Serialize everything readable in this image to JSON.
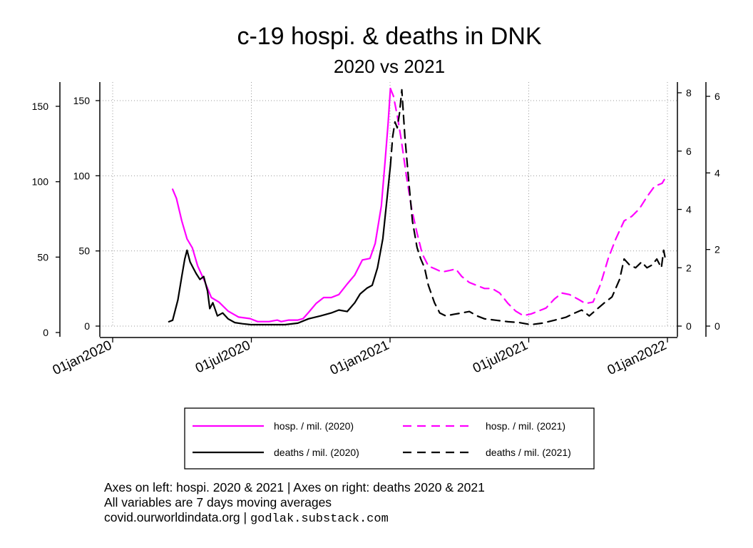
{
  "chart_data": {
    "type": "line",
    "title": "c-19 hospi. & deaths in DNK",
    "subtitle": "2020 vs 2021",
    "x_ticks": [
      "01jan2020",
      "01jul2020",
      "01jan2021",
      "01jul2021",
      "01jan2022"
    ],
    "x_range": [
      "2020-01-01",
      "2022-01-01"
    ],
    "y_left": {
      "ticks": [
        0,
        50,
        100,
        150
      ],
      "range": [
        0,
        160
      ]
    },
    "y_left2": {
      "ticks": [
        0,
        50,
        100,
        150
      ],
      "range": [
        0,
        160
      ]
    },
    "y_right": {
      "ticks": [
        0,
        2,
        4,
        6,
        8
      ],
      "range": [
        0,
        8.2
      ]
    },
    "y_right2": {
      "ticks": [
        0,
        2,
        4,
        6
      ],
      "range": [
        0,
        6.3
      ]
    },
    "grid": true,
    "legend_position": "bottom",
    "series": [
      {
        "name": "hosp. / mil. (2020)",
        "axis": "left",
        "color": "#ff00ff",
        "dash": "solid",
        "points": [
          [
            "2020-03-20",
            91
          ],
          [
            "2020-03-25",
            85
          ],
          [
            "2020-04-01",
            70
          ],
          [
            "2020-04-08",
            58
          ],
          [
            "2020-04-15",
            52
          ],
          [
            "2020-04-22",
            40
          ],
          [
            "2020-05-01",
            30
          ],
          [
            "2020-05-10",
            19
          ],
          [
            "2020-05-20",
            16
          ],
          [
            "2020-06-01",
            10
          ],
          [
            "2020-06-15",
            6
          ],
          [
            "2020-06-30",
            5
          ],
          [
            "2020-07-10",
            3
          ],
          [
            "2020-07-25",
            3
          ],
          [
            "2020-08-05",
            4
          ],
          [
            "2020-08-10",
            3
          ],
          [
            "2020-08-20",
            4
          ],
          [
            "2020-09-01",
            4
          ],
          [
            "2020-09-08",
            5
          ],
          [
            "2020-09-15",
            9
          ],
          [
            "2020-09-25",
            15
          ],
          [
            "2020-10-05",
            19
          ],
          [
            "2020-10-15",
            19
          ],
          [
            "2020-10-25",
            21
          ],
          [
            "2020-11-05",
            28
          ],
          [
            "2020-11-15",
            34
          ],
          [
            "2020-11-25",
            44
          ],
          [
            "2020-12-05",
            45
          ],
          [
            "2020-12-12",
            55
          ],
          [
            "2020-12-20",
            80
          ],
          [
            "2020-12-25",
            110
          ],
          [
            "2020-12-29",
            135
          ],
          [
            "2021-01-01",
            158
          ]
        ]
      },
      {
        "name": "hosp. / mil. (2021)",
        "axis": "left",
        "color": "#ff00ff",
        "dash": "dashed",
        "points": [
          [
            "2021-01-01",
            158
          ],
          [
            "2021-01-05",
            153
          ],
          [
            "2021-01-10",
            140
          ],
          [
            "2021-01-15",
            125
          ],
          [
            "2021-01-22",
            100
          ],
          [
            "2021-01-29",
            78
          ],
          [
            "2021-02-05",
            62
          ],
          [
            "2021-02-12",
            48
          ],
          [
            "2021-02-20",
            40
          ],
          [
            "2021-03-01",
            38
          ],
          [
            "2021-03-10",
            36
          ],
          [
            "2021-03-20",
            37
          ],
          [
            "2021-03-28",
            38
          ],
          [
            "2021-04-05",
            33
          ],
          [
            "2021-04-15",
            29
          ],
          [
            "2021-04-25",
            27
          ],
          [
            "2021-05-05",
            25
          ],
          [
            "2021-05-15",
            25
          ],
          [
            "2021-05-25",
            22
          ],
          [
            "2021-06-05",
            15
          ],
          [
            "2021-06-15",
            10
          ],
          [
            "2021-06-25",
            7
          ],
          [
            "2021-07-05",
            8
          ],
          [
            "2021-07-15",
            10
          ],
          [
            "2021-07-25",
            12
          ],
          [
            "2021-08-05",
            18
          ],
          [
            "2021-08-15",
            22
          ],
          [
            "2021-08-25",
            21
          ],
          [
            "2021-09-05",
            18
          ],
          [
            "2021-09-15",
            15
          ],
          [
            "2021-09-25",
            16
          ],
          [
            "2021-10-05",
            28
          ],
          [
            "2021-10-15",
            45
          ],
          [
            "2021-10-25",
            58
          ],
          [
            "2021-11-05",
            70
          ],
          [
            "2021-11-15",
            73
          ],
          [
            "2021-11-25",
            78
          ],
          [
            "2021-12-05",
            86
          ],
          [
            "2021-12-15",
            93
          ],
          [
            "2021-12-25",
            95
          ],
          [
            "2021-12-31",
            100
          ]
        ]
      },
      {
        "name": "deaths / mil. (2020)",
        "axis": "right",
        "color": "#000000",
        "dash": "solid",
        "points": [
          [
            "2020-03-15",
            0.15
          ],
          [
            "2020-03-20",
            0.2
          ],
          [
            "2020-03-27",
            0.9
          ],
          [
            "2020-04-01",
            1.7
          ],
          [
            "2020-04-05",
            2.3
          ],
          [
            "2020-04-08",
            2.6
          ],
          [
            "2020-04-12",
            2.2
          ],
          [
            "2020-04-16",
            2.0
          ],
          [
            "2020-04-20",
            1.8
          ],
          [
            "2020-04-25",
            1.6
          ],
          [
            "2020-04-30",
            1.7
          ],
          [
            "2020-05-05",
            1.2
          ],
          [
            "2020-05-08",
            0.6
          ],
          [
            "2020-05-12",
            0.8
          ],
          [
            "2020-05-18",
            0.35
          ],
          [
            "2020-05-25",
            0.45
          ],
          [
            "2020-06-01",
            0.25
          ],
          [
            "2020-06-10",
            0.12
          ],
          [
            "2020-06-20",
            0.08
          ],
          [
            "2020-07-01",
            0.05
          ],
          [
            "2020-07-15",
            0.05
          ],
          [
            "2020-08-01",
            0.05
          ],
          [
            "2020-08-15",
            0.05
          ],
          [
            "2020-09-01",
            0.1
          ],
          [
            "2020-09-15",
            0.25
          ],
          [
            "2020-10-01",
            0.35
          ],
          [
            "2020-10-15",
            0.45
          ],
          [
            "2020-10-25",
            0.55
          ],
          [
            "2020-11-05",
            0.5
          ],
          [
            "2020-11-15",
            0.8
          ],
          [
            "2020-11-22",
            1.1
          ],
          [
            "2020-12-01",
            1.3
          ],
          [
            "2020-12-08",
            1.4
          ],
          [
            "2020-12-15",
            2.0
          ],
          [
            "2020-12-22",
            3.0
          ],
          [
            "2020-12-28",
            4.5
          ],
          [
            "2021-01-01",
            5.5
          ]
        ]
      },
      {
        "name": "deaths / mil. (2021)",
        "axis": "right",
        "color": "#000000",
        "dash": "dashed",
        "points": [
          [
            "2021-01-01",
            5.5
          ],
          [
            "2021-01-04",
            6.5
          ],
          [
            "2021-01-07",
            7.0
          ],
          [
            "2021-01-10",
            6.8
          ],
          [
            "2021-01-13",
            7.3
          ],
          [
            "2021-01-16",
            8.1
          ],
          [
            "2021-01-20",
            6.5
          ],
          [
            "2021-01-25",
            5.0
          ],
          [
            "2021-01-30",
            3.6
          ],
          [
            "2021-02-05",
            2.7
          ],
          [
            "2021-02-10",
            2.3
          ],
          [
            "2021-02-15",
            2.0
          ],
          [
            "2021-02-20",
            1.4
          ],
          [
            "2021-02-28",
            0.8
          ],
          [
            "2021-03-07",
            0.45
          ],
          [
            "2021-03-15",
            0.35
          ],
          [
            "2021-03-25",
            0.4
          ],
          [
            "2021-04-05",
            0.45
          ],
          [
            "2021-04-15",
            0.5
          ],
          [
            "2021-04-25",
            0.35
          ],
          [
            "2021-05-05",
            0.25
          ],
          [
            "2021-05-20",
            0.2
          ],
          [
            "2021-06-05",
            0.15
          ],
          [
            "2021-06-20",
            0.12
          ],
          [
            "2021-07-05",
            0.05
          ],
          [
            "2021-07-20",
            0.1
          ],
          [
            "2021-08-05",
            0.2
          ],
          [
            "2021-08-20",
            0.3
          ],
          [
            "2021-09-01",
            0.45
          ],
          [
            "2021-09-10",
            0.55
          ],
          [
            "2021-09-20",
            0.35
          ],
          [
            "2021-10-01",
            0.6
          ],
          [
            "2021-10-10",
            0.8
          ],
          [
            "2021-10-20",
            1.0
          ],
          [
            "2021-10-30",
            1.6
          ],
          [
            "2021-11-05",
            2.3
          ],
          [
            "2021-11-12",
            2.1
          ],
          [
            "2021-11-20",
            2.0
          ],
          [
            "2021-11-28",
            2.2
          ],
          [
            "2021-12-05",
            2.0
          ],
          [
            "2021-12-12",
            2.1
          ],
          [
            "2021-12-18",
            2.3
          ],
          [
            "2021-12-24",
            2.0
          ],
          [
            "2021-12-27",
            2.6
          ],
          [
            "2021-12-30",
            2.2
          ]
        ]
      }
    ]
  },
  "legend": {
    "hosp_2020": "hosp. / mil. (2020)",
    "hosp_2021": "hosp. / mil. (2021)",
    "deaths_2020": "deaths / mil. (2020)",
    "deaths_2021": "deaths / mil. (2021)"
  },
  "note": {
    "line1": "Axes on left: hospi. 2020 & 2021 | Axes on right: deaths 2020 & 2021",
    "line2": "All variables are 7 days moving averages",
    "line3_source": "covid.ourworldindata.org |",
    "line3_site": "godlak.substack.com"
  }
}
